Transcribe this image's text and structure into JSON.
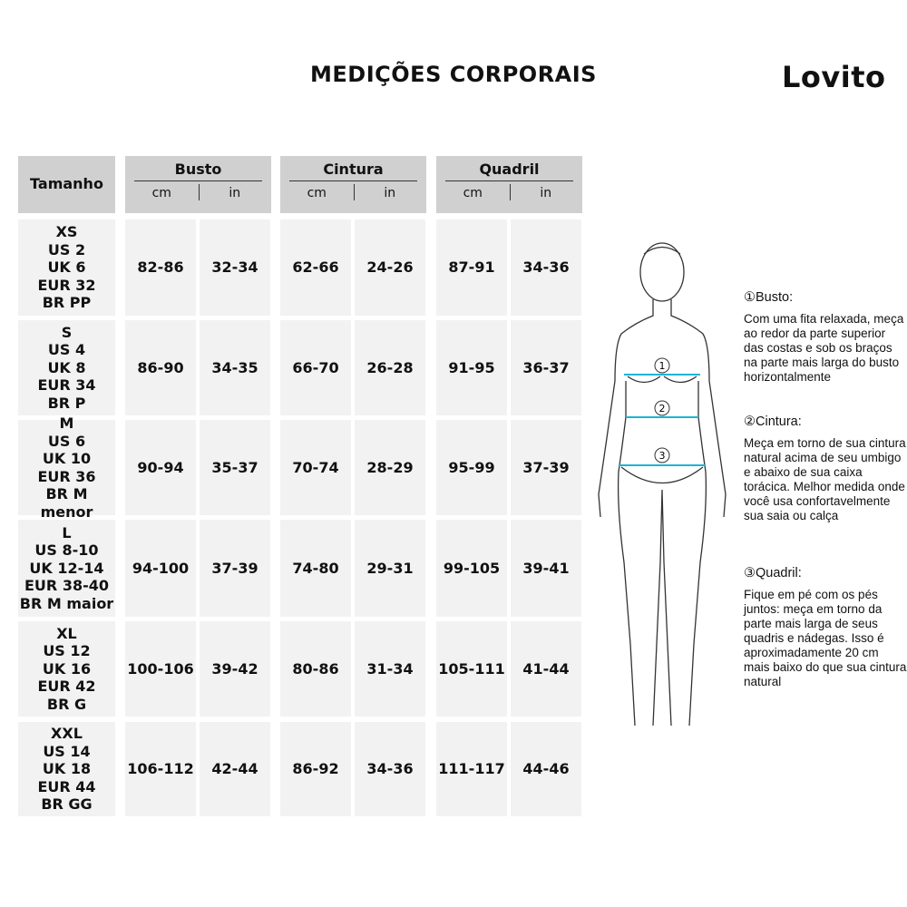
{
  "title": "MEDIÇÕES CORPORAIS",
  "brand": "Lovito",
  "headers": {
    "size": "Tamanho",
    "groups": [
      "Busto",
      "Cintura",
      "Quadril"
    ],
    "cm": "cm",
    "in": "in"
  },
  "rows": [
    {
      "size": "XS\nUS 2\nUK 6\nEUR 32\nBR PP",
      "values": [
        "82-86",
        "32-34",
        "62-66",
        "24-26",
        "87-91",
        "34-36"
      ]
    },
    {
      "size": "S\nUS 4\nUK 8\nEUR 34\nBR P",
      "values": [
        "86-90",
        "34-35",
        "66-70",
        "26-28",
        "91-95",
        "36-37"
      ]
    },
    {
      "size": "M\nUS 6\nUK 10\nEUR 36\nBR M menor",
      "values": [
        "90-94",
        "35-37",
        "70-74",
        "28-29",
        "95-99",
        "37-39"
      ]
    },
    {
      "size": "L\nUS 8-10\nUK 12-14\nEUR 38-40\nBR M maior",
      "values": [
        "94-100",
        "37-39",
        "74-80",
        "29-31",
        "99-105",
        "39-41"
      ]
    },
    {
      "size": "XL\nUS 12\nUK 16\nEUR 42\nBR G",
      "values": [
        "100-106",
        "39-42",
        "80-86",
        "31-34",
        "105-111",
        "41-44"
      ]
    },
    {
      "size": "XXL\nUS 14\nUK 18\nEUR 44\nBR GG",
      "values": [
        "106-112",
        "42-44",
        "86-92",
        "34-36",
        "111-117",
        "44-46"
      ]
    }
  ],
  "figure": {
    "markers": [
      "1",
      "2",
      "3"
    ],
    "line_color": "#19b5d8"
  },
  "instructions": [
    {
      "heading": "①Busto:",
      "text": "Com uma fita relaxada, meça ao redor da parte superior das costas e sob os braços na parte mais larga do busto horizontalmente"
    },
    {
      "heading": "②Cintura:",
      "text": "Meça em torno de sua cintura natural acima de seu umbigo e abaixo de sua caixa torácica. Melhor medida onde você usa confortavelmente sua saia ou calça"
    },
    {
      "heading": "③Quadril:",
      "text": "Fique em pé com os pés juntos: meça em torno da parte mais larga de seus quadris e nádegas. Isso é aproximadamente 20 cm mais baixo do que sua cintura natural"
    }
  ]
}
